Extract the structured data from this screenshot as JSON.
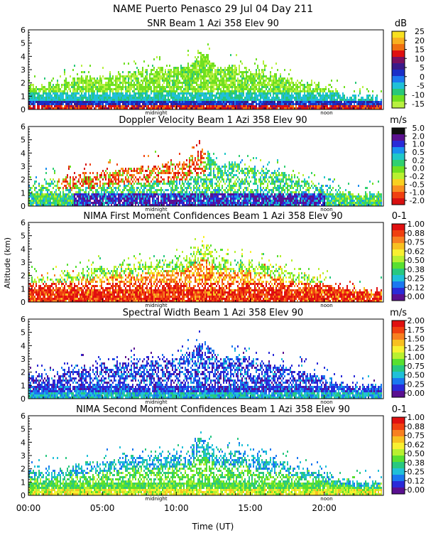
{
  "figure": {
    "title": "NAME Puerto Penasco  29 Jul 04 Day 211",
    "ylabel": "Altitude (km)",
    "xlabel": "Time (UT)",
    "x_ticks": [
      "00:00",
      "05:00",
      "10:00",
      "15:00",
      "20:00"
    ],
    "midnight_label": "midnight",
    "noon_label": "noon"
  },
  "chart_data": [
    {
      "type": "heatmap",
      "title": "SNR Beam 1 Azi 358 Elev 90",
      "unit": "dB",
      "x_range_hours": [
        0,
        24
      ],
      "ylim": [
        0,
        6
      ],
      "y_ticks": [
        "0",
        "1",
        "2",
        "3",
        "4",
        "5",
        "6"
      ],
      "colorbar_labels": [
        "25",
        "20",
        "15",
        "10",
        "5",
        "0",
        "-5",
        "-10",
        "-15"
      ],
      "colors": [
        "#f7e020",
        "#f8b020",
        "#f07010",
        "#e01010",
        "#7a1060",
        "#3a1a8a",
        "#1a2ec8",
        "#1c78f0",
        "#20c0d8",
        "#28c878",
        "#70e020",
        "#b8f040"
      ],
      "pattern": "snr"
    },
    {
      "type": "heatmap",
      "title": "Doppler Velocity Beam 1 Azi 358 Elev 90",
      "unit": "m/s",
      "x_range_hours": [
        0,
        24
      ],
      "ylim": [
        0,
        6
      ],
      "y_ticks": [
        "0",
        "1",
        "2",
        "3",
        "4",
        "5",
        "6"
      ],
      "colorbar_labels": [
        "5.0",
        "2.0",
        "1.0",
        "0.5",
        "0.2",
        "0.0",
        "-0.2",
        "-0.5",
        "-1.0",
        "-2.0"
      ],
      "colors": [
        "#101010",
        "#5a1090",
        "#2a2ad8",
        "#1a90f0",
        "#20c8c8",
        "#30d070",
        "#70e020",
        "#b8f030",
        "#f8d020",
        "#f89020",
        "#f04010",
        "#d81010"
      ],
      "pattern": "doppler"
    },
    {
      "type": "heatmap",
      "title": "NIMA First Moment Confidences Beam 1 Azi 358 Elev 90",
      "unit": "0-1",
      "x_range_hours": [
        0,
        24
      ],
      "ylim": [
        0,
        6
      ],
      "y_ticks": [
        "0",
        "1",
        "2",
        "3",
        "4",
        "5",
        "6"
      ],
      "colorbar_labels": [
        "1.00",
        "0.88",
        "0.75",
        "0.62",
        "0.50",
        "0.38",
        "0.25",
        "0.12",
        "0.00"
      ],
      "colors": [
        "#e01010",
        "#f04010",
        "#f88020",
        "#f8c020",
        "#f8f030",
        "#b8f030",
        "#58e030",
        "#28c880",
        "#20c0d8",
        "#1a78f0",
        "#2a2ad8",
        "#5a1090"
      ],
      "pattern": "conf1"
    },
    {
      "type": "heatmap",
      "title": "Spectral Width Beam 1 Azi 358 Elev 90",
      "unit": "m/s",
      "x_range_hours": [
        0,
        24
      ],
      "ylim": [
        0,
        6
      ],
      "y_ticks": [
        "0",
        "1",
        "2",
        "3",
        "4",
        "5",
        "6"
      ],
      "colorbar_labels": [
        "2.00",
        "1.75",
        "1.50",
        "1.25",
        "1.00",
        "0.75",
        "0.50",
        "0.25",
        "0.00"
      ],
      "colors": [
        "#e01010",
        "#f04010",
        "#f88020",
        "#f8c020",
        "#f8f030",
        "#b8f030",
        "#58e030",
        "#28c880",
        "#20c0d8",
        "#1a78f0",
        "#2a2ad8",
        "#5a1090"
      ],
      "pattern": "width"
    },
    {
      "type": "heatmap",
      "title": "NIMA Second Moment Confidences Beam 1 Azi 358 Elev 90",
      "unit": "0-1",
      "x_range_hours": [
        0,
        24
      ],
      "ylim": [
        0,
        6
      ],
      "y_ticks": [
        "0",
        "1",
        "2",
        "3",
        "4",
        "5",
        "6"
      ],
      "colorbar_labels": [
        "1.00",
        "0.88",
        "0.75",
        "0.62",
        "0.50",
        "0.38",
        "0.25",
        "0.12",
        "0.00"
      ],
      "colors": [
        "#e01010",
        "#f04010",
        "#f88020",
        "#f8c020",
        "#f8f030",
        "#b8f030",
        "#58e030",
        "#28c880",
        "#20c0d8",
        "#1a78f0",
        "#2a2ad8",
        "#5a1090"
      ],
      "pattern": "conf2"
    }
  ]
}
